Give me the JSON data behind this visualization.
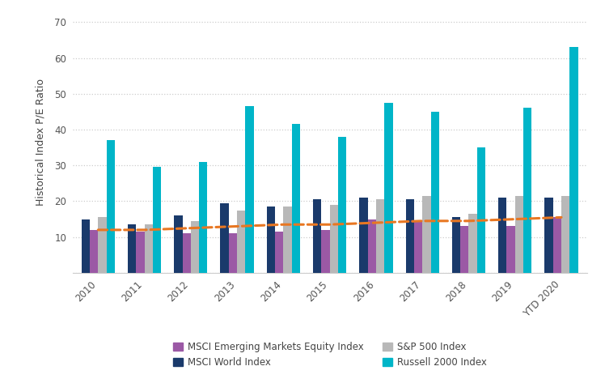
{
  "years": [
    "2010",
    "2011",
    "2012",
    "2013",
    "2014",
    "2015",
    "2016",
    "2017",
    "2018",
    "2019",
    "YTD 2020"
  ],
  "msci_world": [
    15.0,
    13.5,
    16.0,
    19.5,
    18.5,
    20.5,
    21.0,
    20.5,
    15.5,
    21.0,
    21.0
  ],
  "msci_emerging": [
    12.0,
    11.5,
    11.0,
    11.0,
    11.5,
    12.0,
    15.0,
    14.5,
    13.0,
    13.0,
    15.5
  ],
  "sp500": [
    15.5,
    13.5,
    14.5,
    17.5,
    18.5,
    19.0,
    20.5,
    21.5,
    16.5,
    21.5,
    21.5
  ],
  "russell2000": [
    37.0,
    29.5,
    31.0,
    46.5,
    41.5,
    38.0,
    47.5,
    45.0,
    35.0,
    46.0,
    63.0
  ],
  "dashed_line": [
    12.0,
    12.0,
    12.5,
    13.0,
    13.5,
    13.5,
    14.0,
    14.5,
    14.5,
    15.0,
    15.5
  ],
  "colors": {
    "msci_emerging": "#9b59a5",
    "msci_world": "#1a3a6b",
    "sp500": "#b8b8b8",
    "russell2000": "#00b5c8",
    "dashed_line": "#e87722"
  },
  "ylabel": "Historical Index P/E Ratio",
  "ylim": [
    0,
    73
  ],
  "yticks": [
    0,
    10,
    20,
    30,
    40,
    50,
    60,
    70
  ],
  "bar_width": 0.18,
  "legend_labels": [
    "MSCI Emerging Markets Equity Index",
    "MSCI World Index",
    "S&P 500 Index",
    "Russell 2000 Index"
  ],
  "background_color": "#ffffff",
  "grid_color": "#cccccc"
}
